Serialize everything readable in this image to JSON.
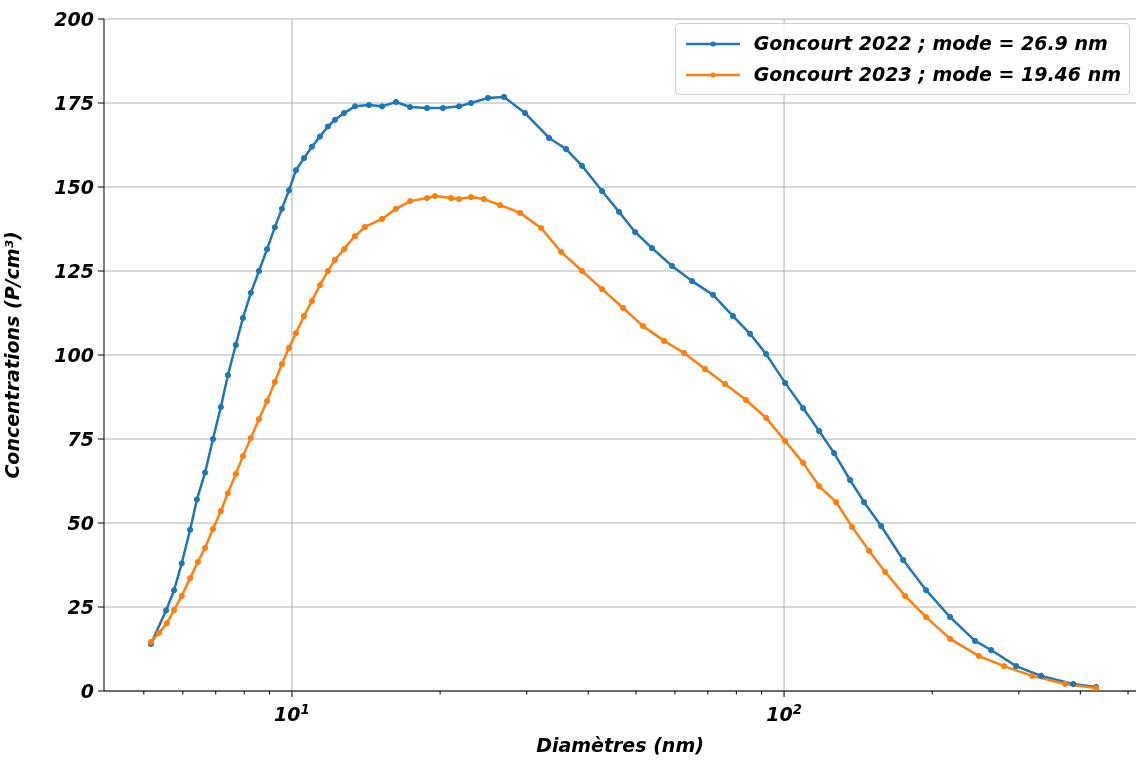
{
  "chart_data": {
    "type": "line",
    "xlabel": "Diamètres (nm)",
    "ylabel": "Concentrations (P/cm³)",
    "log": "x",
    "xlim": [
      4.15,
      519
    ],
    "ylim": [
      0,
      200
    ],
    "xticks": [
      {
        "value": 5,
        "label": null
      },
      {
        "value": 6,
        "label": null
      },
      {
        "value": 7,
        "label": null
      },
      {
        "value": 8,
        "label": null
      },
      {
        "value": 9,
        "label": null
      },
      {
        "value": 10,
        "label": "10$^{1}$"
      },
      {
        "value": 20,
        "label": null
      },
      {
        "value": 30,
        "label": null
      },
      {
        "value": 40,
        "label": null
      },
      {
        "value": 50,
        "label": null
      },
      {
        "value": 60,
        "label": null
      },
      {
        "value": 70,
        "label": null
      },
      {
        "value": 80,
        "label": null
      },
      {
        "value": 90,
        "label": null
      },
      {
        "value": 100,
        "label": "10$^{2}$"
      },
      {
        "value": 200,
        "label": null
      },
      {
        "value": 300,
        "label": null
      },
      {
        "value": 400,
        "label": null
      },
      {
        "value": 500,
        "label": null
      }
    ],
    "yticks": [
      0,
      25,
      50,
      75,
      100,
      125,
      150,
      175,
      200
    ],
    "grid": true,
    "legend": "top right",
    "marker": "circle",
    "line_style": "solid",
    "series": [
      {
        "name": "Goncourt 2022 ; mode = 26.9 nm",
        "color": "#1f77b4",
        "x": [
          5.17,
          5.55,
          5.76,
          5.97,
          6.21,
          6.41,
          6.66,
          6.91,
          7.17,
          7.41,
          7.69,
          7.95,
          8.25,
          8.57,
          8.9,
          9.23,
          9.54,
          9.86,
          10.19,
          10.58,
          10.98,
          11.4,
          11.83,
          12.23,
          12.76,
          13.43,
          14.34,
          15.24,
          16.27,
          17.38,
          18.81,
          20.27,
          21.85,
          23.11,
          25.03,
          26.97,
          29.76,
          33.3,
          36.06,
          38.86,
          42.67,
          46.2,
          49.81,
          53.92,
          59.2,
          65.01,
          71.74,
          78.75,
          85.29,
          91.93,
          100.5,
          109.3,
          117.8,
          126.4,
          136.2,
          145.4,
          157.5,
          174.6,
          194.4,
          217.5,
          244.4,
          263.4,
          296.2,
          333.0,
          386.8,
          430.7
        ],
        "values": [
          14,
          24,
          30,
          38,
          48,
          57,
          65,
          75,
          84.5,
          94,
          103,
          111,
          118.5,
          125,
          131.5,
          138,
          143.5,
          149,
          155,
          158.6,
          162,
          165,
          168,
          170,
          172,
          174,
          174.4,
          174,
          175.3,
          173.8,
          173.5,
          173.5,
          174,
          175,
          176.5,
          176.8,
          172,
          164.6,
          161.3,
          156.3,
          148.8,
          142.6,
          136.6,
          131.8,
          126.5,
          122,
          117.9,
          111.6,
          106.3,
          100.3,
          91.7,
          84.2,
          77.4,
          70.8,
          62.8,
          56.2,
          49.1,
          39,
          30,
          22,
          14.9,
          12.2,
          7.4,
          4.5,
          2.1,
          1.2
        ]
      },
      {
        "name": "Goncourt 2023 ; mode = 19.46 nm",
        "color": "#ff7f0e",
        "x": [
          5.17,
          5.37,
          5.57,
          5.76,
          5.97,
          6.21,
          6.44,
          6.66,
          6.91,
          7.17,
          7.41,
          7.69,
          7.95,
          8.25,
          8.57,
          8.9,
          9.23,
          9.54,
          9.86,
          10.19,
          10.58,
          10.98,
          11.4,
          11.83,
          12.23,
          12.76,
          13.43,
          14.07,
          15.24,
          16.27,
          17.38,
          18.81,
          19.53,
          21.05,
          21.85,
          23.11,
          24.56,
          26.48,
          29.07,
          32.08,
          35.23,
          38.86,
          42.67,
          47.09,
          51.7,
          57.03,
          62.62,
          69.1,
          75.86,
          83.71,
          91.93,
          100.5,
          109.3,
          117.8,
          127.6,
          137.5,
          148.9,
          160.5,
          176.2,
          194.4,
          217.5,
          249.0,
          280.0,
          319.2,
          372.6,
          430.7
        ],
        "values": [
          14.6,
          17.3,
          20.2,
          24.1,
          28.3,
          33.6,
          38.4,
          42.6,
          48.2,
          53.6,
          58.9,
          64.6,
          69.9,
          75.3,
          80.9,
          86.3,
          92,
          97.3,
          102.1,
          106.5,
          111.6,
          116.1,
          120.8,
          125,
          128.3,
          131.5,
          135.4,
          138.1,
          140.5,
          143.5,
          145.8,
          146.7,
          147.3,
          146.7,
          146.4,
          147,
          146.4,
          144.6,
          142.3,
          137.8,
          130.7,
          125,
          119.6,
          114,
          108.6,
          104.2,
          100.6,
          95.8,
          91.4,
          86.6,
          81.3,
          74.4,
          67.9,
          61,
          56.2,
          48.8,
          41.7,
          35.4,
          28.3,
          22,
          15.5,
          10.4,
          7.4,
          4.5,
          2.1,
          0.9
        ]
      }
    ]
  }
}
